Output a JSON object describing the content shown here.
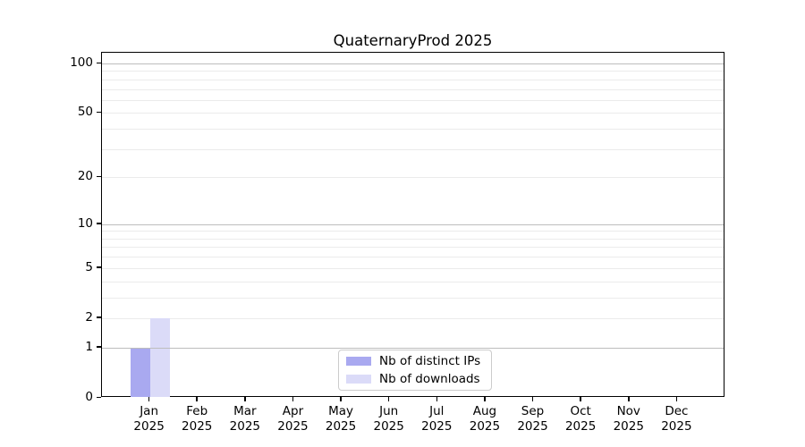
{
  "chart_data": {
    "type": "bar",
    "title": "QuaternaryProd 2025",
    "x_categories": [
      "Jan",
      "Feb",
      "Mar",
      "Apr",
      "May",
      "Jun",
      "Jul",
      "Aug",
      "Sep",
      "Oct",
      "Nov",
      "Dec"
    ],
    "x_year_label": "2025",
    "series": [
      {
        "name": "Nb of distinct IPs",
        "color": "#a9a9f0",
        "values": [
          1,
          0,
          0,
          0,
          0,
          0,
          0,
          0,
          0,
          0,
          0,
          0
        ]
      },
      {
        "name": "Nb of downloads",
        "color": "#dbdbf8",
        "values": [
          2,
          0,
          0,
          0,
          0,
          0,
          0,
          0,
          0,
          0,
          0,
          0
        ]
      }
    ],
    "y_axis": {
      "scale": "log10(value+1)",
      "tick_values": [
        0,
        1,
        2,
        5,
        10,
        20,
        50,
        100
      ],
      "major_gridline_values": [
        1,
        10,
        100
      ],
      "minor_gridline_values": [
        2,
        3,
        4,
        5,
        6,
        7,
        8,
        9,
        20,
        30,
        40,
        50,
        60,
        70,
        80,
        90
      ]
    },
    "legend_position": "bottom-center",
    "colors": {
      "major_grid": "#bdbdbd",
      "minor_grid": "#ebebeb",
      "axis": "#000000",
      "background": "#ffffff"
    }
  }
}
